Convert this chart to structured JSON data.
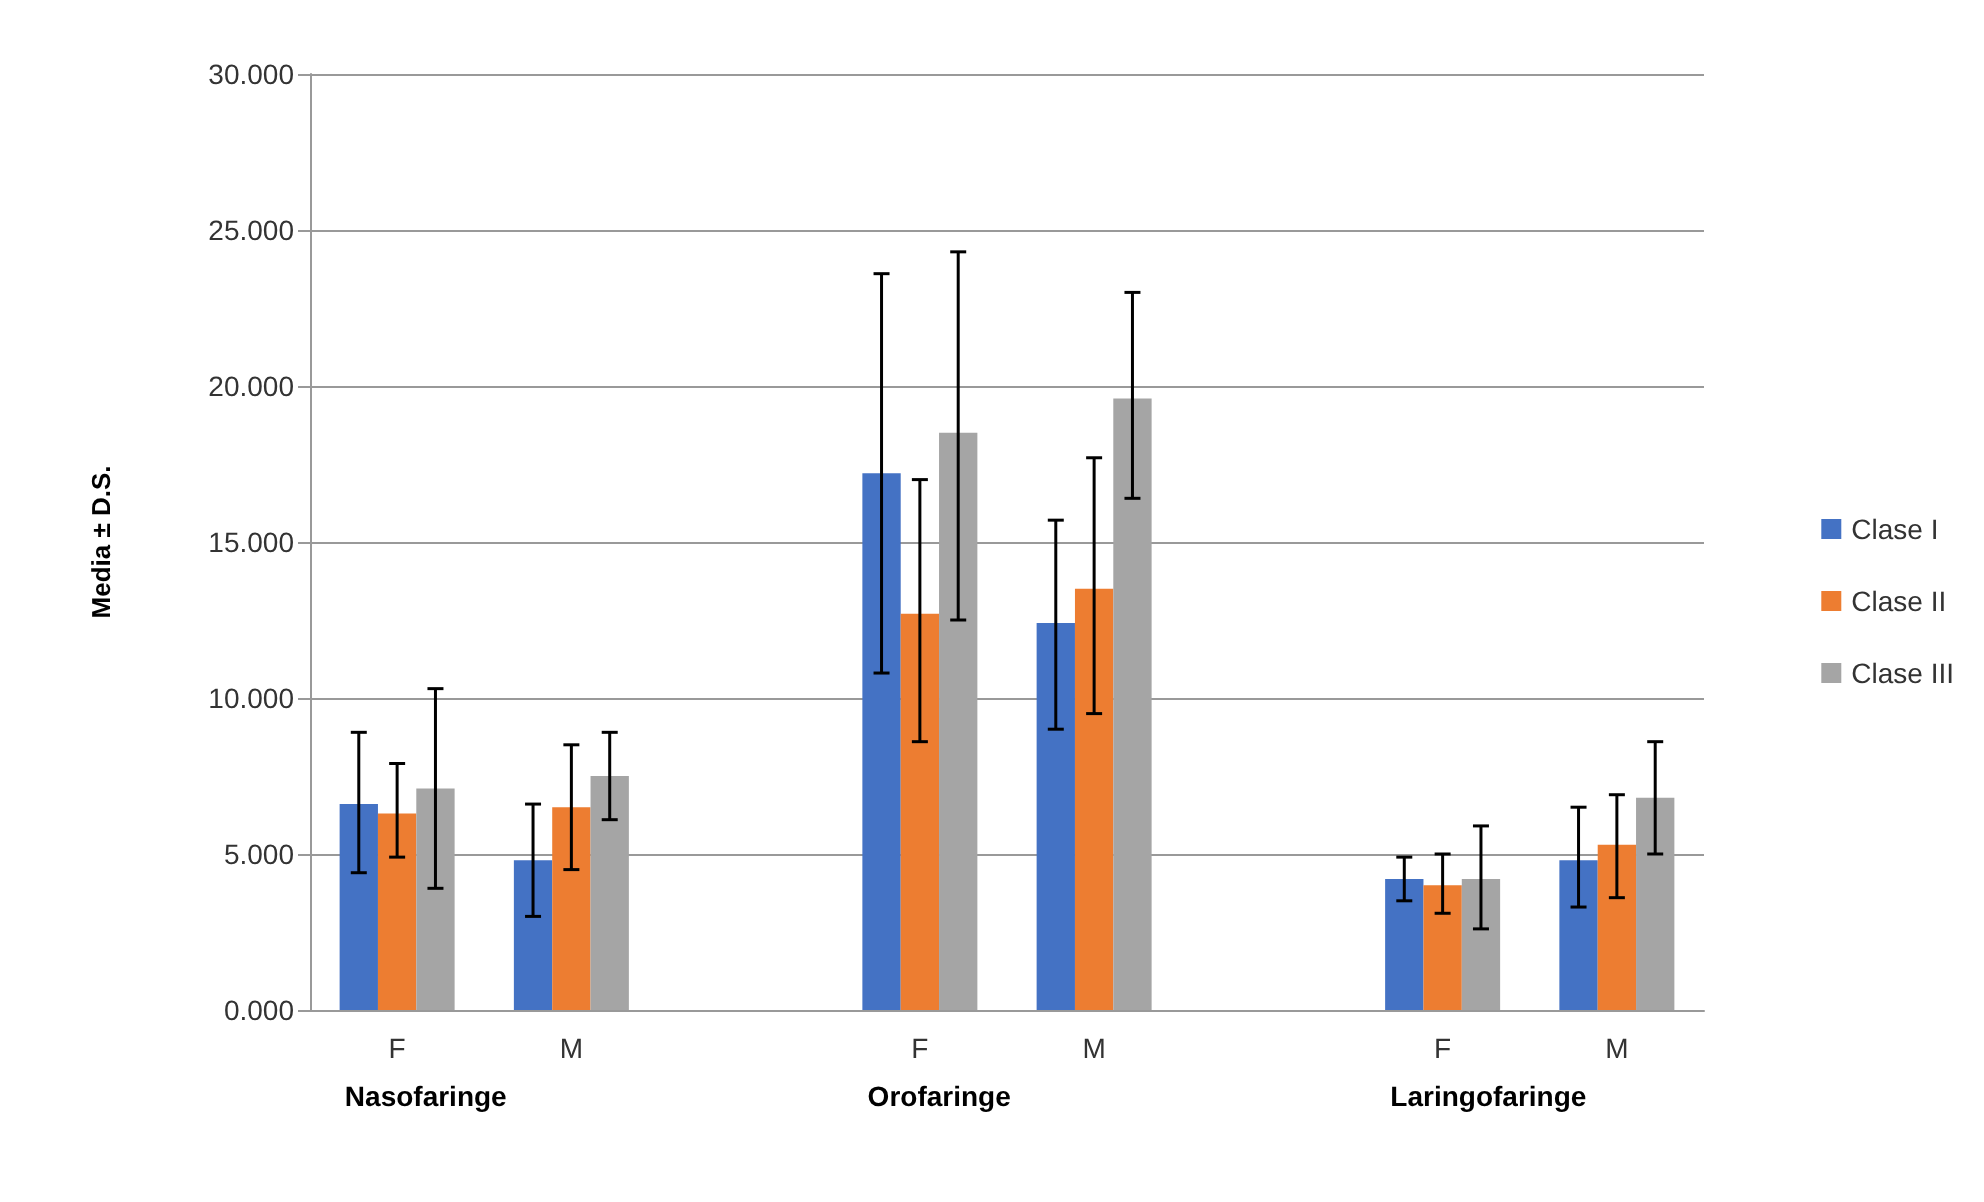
{
  "chart_data": {
    "type": "bar",
    "ylabel": "Media ± D.S.",
    "categories": [
      "F",
      "M",
      null,
      "F",
      "M",
      null,
      "F",
      "M"
    ],
    "series": [
      {
        "name": "Clase I",
        "color": "#4472c4",
        "values": [
          6.6,
          4.8,
          null,
          17.2,
          12.4,
          null,
          4.2,
          4.8
        ],
        "errors": [
          [
            4.4,
            8.9
          ],
          [
            3.0,
            6.6
          ],
          null,
          [
            10.8,
            23.6
          ],
          [
            9.0,
            15.7
          ],
          null,
          [
            3.5,
            4.9
          ],
          [
            3.3,
            6.5
          ]
        ]
      },
      {
        "name": "Clase II",
        "color": "#ed7d31",
        "values": [
          6.3,
          6.5,
          null,
          12.7,
          13.5,
          null,
          4.0,
          5.3
        ],
        "errors": [
          [
            4.9,
            7.9
          ],
          [
            4.5,
            8.5
          ],
          null,
          [
            8.6,
            17.0
          ],
          [
            9.5,
            17.7
          ],
          null,
          [
            3.1,
            5.0
          ],
          [
            3.6,
            6.9
          ]
        ]
      },
      {
        "name": "Clase III",
        "color": "#a5a5a5",
        "values": [
          7.1,
          7.5,
          null,
          18.5,
          19.6,
          null,
          4.2,
          6.8
        ],
        "errors": [
          [
            3.9,
            10.3
          ],
          [
            6.1,
            8.9
          ],
          null,
          [
            12.5,
            24.3
          ],
          [
            16.4,
            23.0
          ],
          null,
          [
            2.6,
            5.9
          ],
          [
            5.0,
            8.6
          ]
        ]
      }
    ],
    "ylim": [
      0,
      30
    ],
    "yticks": [
      {
        "value": 0,
        "label": "0.000"
      },
      {
        "value": 5,
        "label": "5.000"
      },
      {
        "value": 10,
        "label": "10.000"
      },
      {
        "value": 15,
        "label": "15.000"
      },
      {
        "value": 20,
        "label": "20.000"
      },
      {
        "value": 25,
        "label": "25.000"
      },
      {
        "value": 30,
        "label": "30.000"
      }
    ],
    "annotations": [
      "Nasofaringe",
      "Orofaringe",
      "Laringofaringe"
    ],
    "grid": "y",
    "legend": "right"
  }
}
